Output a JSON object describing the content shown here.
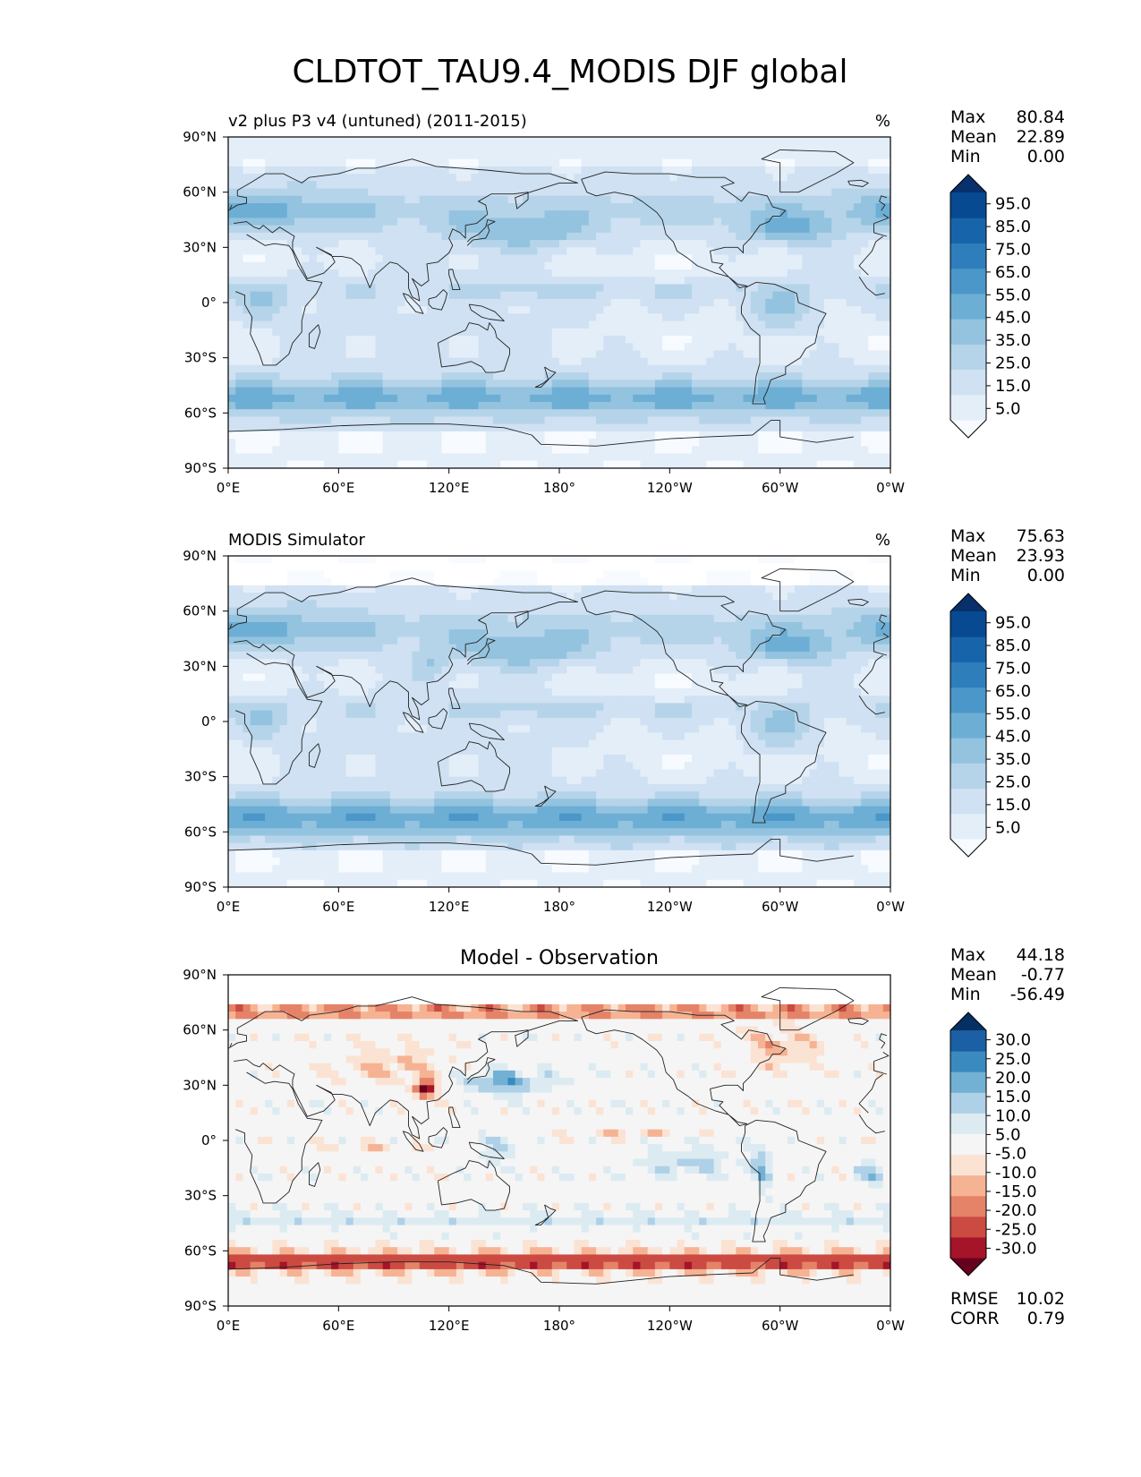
{
  "figure": {
    "title": "CLDTOT_TAU9.4_MODIS DJF global"
  },
  "panels": [
    {
      "left_title": "v2 plus P3 v4 (untuned) (2011-2015)",
      "center_title": "",
      "units": "%",
      "stats": [
        {
          "label": "Max",
          "value": "80.84"
        },
        {
          "label": "Mean",
          "value": "22.89"
        },
        {
          "label": "Min",
          "value": "0.00"
        }
      ],
      "colorbar": {
        "type": "sequential",
        "tick_labels": [
          "95.0",
          "85.0",
          "75.0",
          "65.0",
          "55.0",
          "45.0",
          "35.0",
          "25.0",
          "15.0",
          "5.0"
        ],
        "colors": [
          "#f7fbff",
          "#e3eef9",
          "#cfe1f2",
          "#b5d4e9",
          "#93c3df",
          "#6daed5",
          "#4b97c9",
          "#2f7ebc",
          "#1764ab",
          "#084a91",
          "#08306b"
        ]
      },
      "field_variant": "model"
    },
    {
      "left_title": "MODIS Simulator",
      "center_title": "",
      "units": "%",
      "stats": [
        {
          "label": "Max",
          "value": "75.63"
        },
        {
          "label": "Mean",
          "value": "23.93"
        },
        {
          "label": "Min",
          "value": "0.00"
        }
      ],
      "colorbar": {
        "type": "sequential",
        "tick_labels": [
          "95.0",
          "85.0",
          "75.0",
          "65.0",
          "55.0",
          "45.0",
          "35.0",
          "25.0",
          "15.0",
          "5.0"
        ],
        "colors": [
          "#f7fbff",
          "#e3eef9",
          "#cfe1f2",
          "#b5d4e9",
          "#93c3df",
          "#6daed5",
          "#4b97c9",
          "#2f7ebc",
          "#1764ab",
          "#084a91",
          "#08306b"
        ]
      },
      "field_variant": "obs"
    },
    {
      "left_title": "",
      "center_title": "Model - Observation",
      "units": "",
      "stats": [
        {
          "label": "Max",
          "value": "44.18"
        },
        {
          "label": "Mean",
          "value": "-0.77"
        },
        {
          "label": "Min",
          "value": "-56.49"
        }
      ],
      "colorbar": {
        "type": "diverging",
        "tick_labels": [
          "30.0",
          "25.0",
          "20.0",
          "15.0",
          "10.0",
          "5.0",
          "-5.0",
          "-10.0",
          "-15.0",
          "-20.0",
          "-25.0",
          "-30.0"
        ],
        "colors": [
          "#67001f",
          "#a51429",
          "#cb4a42",
          "#e58368",
          "#f6b394",
          "#fbe3d4",
          "#f5f5f5",
          "#dcebf2",
          "#afd1e7",
          "#72b1d4",
          "#3a8abf",
          "#1b5fa4",
          "#053061"
        ]
      },
      "bottom_stats": [
        {
          "label": "RMSE",
          "value": "10.02"
        },
        {
          "label": "CORR",
          "value": "0.79"
        }
      ],
      "field_variant": "diff"
    }
  ],
  "axes": {
    "xticks": [
      "0°E",
      "60°E",
      "120°E",
      "180°",
      "120°W",
      "60°W",
      "0°W"
    ],
    "yticks": [
      "90°N",
      "60°N",
      "30°N",
      "0°",
      "30°S",
      "60°S",
      "90°S"
    ]
  }
}
